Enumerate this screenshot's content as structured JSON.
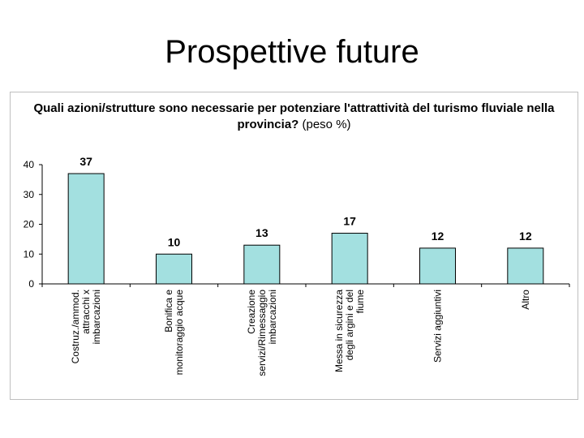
{
  "slide": {
    "title": "Prospettive future"
  },
  "chart_data": {
    "type": "bar",
    "title_bold": "Quali azioni/strutture sono necessarie per potenziare l'attrattività del turismo fluviale nella provincia?",
    "title_suffix": "(peso %)",
    "categories": [
      [
        "Costruz./ammod.",
        "attracchi x",
        "imbarcazioni"
      ],
      [
        "Bonifica e",
        "monitoraggio acque"
      ],
      [
        "Creazione",
        "servizi/Rimessaggio",
        "imbarcazioni"
      ],
      [
        "Messa in sicurezza",
        "degli argini e del",
        "fiume"
      ],
      [
        "Servizi aggiuntivi"
      ],
      [
        "Altro"
      ]
    ],
    "values": [
      37,
      10,
      13,
      17,
      12,
      12
    ],
    "ylim": [
      0,
      40
    ],
    "yticks": [
      0,
      10,
      20,
      30,
      40
    ],
    "grid": false,
    "bar_color": "#a3e0e0",
    "bar_stroke": "#000000"
  }
}
